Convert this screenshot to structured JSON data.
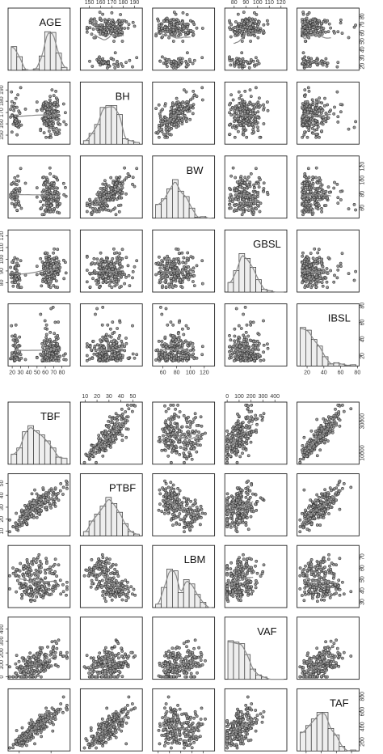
{
  "chart_data": [
    {
      "type": "scatter",
      "variables": [
        {
          "name": "AGE",
          "range": [
            15,
            90
          ],
          "ticks": [
            20,
            30,
            40,
            50,
            60,
            70,
            80
          ],
          "tick_labels": [
            "20",
            "30",
            "40",
            "50",
            "60",
            "70",
            "80"
          ]
        },
        {
          "name": "BH",
          "range": [
            142,
            197
          ],
          "ticks": [
            150,
            160,
            170,
            180,
            190
          ],
          "tick_labels": [
            "150",
            "160",
            "170",
            "180",
            "190"
          ]
        },
        {
          "name": "BW",
          "range": [
            45,
            135
          ],
          "ticks": [
            60,
            80,
            100,
            120
          ],
          "tick_labels": [
            "60",
            "80",
            "100",
            "120"
          ]
        },
        {
          "name": "GBSL",
          "range": [
            72,
            125
          ],
          "ticks": [
            80,
            90,
            100,
            110,
            120
          ],
          "tick_labels": [
            "80",
            "90",
            "100",
            "110",
            "120"
          ]
        },
        {
          "name": "IBSL",
          "range": [
            8,
            82
          ],
          "ticks": [
            20,
            40,
            60,
            80
          ],
          "tick_labels": [
            "20",
            "40",
            "60",
            "80"
          ]
        }
      ]
    },
    {
      "type": "scatter",
      "variables": [
        {
          "name": "TBF",
          "range": [
            3000,
            42000
          ],
          "ticks": [
            10000,
            30000
          ],
          "tick_labels": [
            "10000",
            "30000"
          ]
        },
        {
          "name": "PTBF",
          "range": [
            6,
            58
          ],
          "ticks": [
            10,
            20,
            30,
            40,
            50
          ],
          "tick_labels": [
            "10",
            "20",
            "30",
            "40",
            "50"
          ]
        },
        {
          "name": "LBM",
          "range": [
            25,
            80
          ],
          "ticks": [
            30,
            40,
            50,
            60,
            70
          ],
          "tick_labels": [
            "30",
            "40",
            "50",
            "60",
            "70"
          ]
        },
        {
          "name": "VAF",
          "range": [
            -20,
            500
          ],
          "ticks": [
            0,
            100,
            200,
            300,
            400
          ],
          "tick_labels": [
            "0",
            "100",
            "200",
            "300",
            "400"
          ]
        },
        {
          "name": "TAF",
          "range": [
            80,
            900
          ],
          "ticks": [
            200,
            400,
            600,
            800
          ],
          "tick_labels": [
            "200",
            "400",
            "600",
            "800"
          ]
        }
      ]
    }
  ]
}
